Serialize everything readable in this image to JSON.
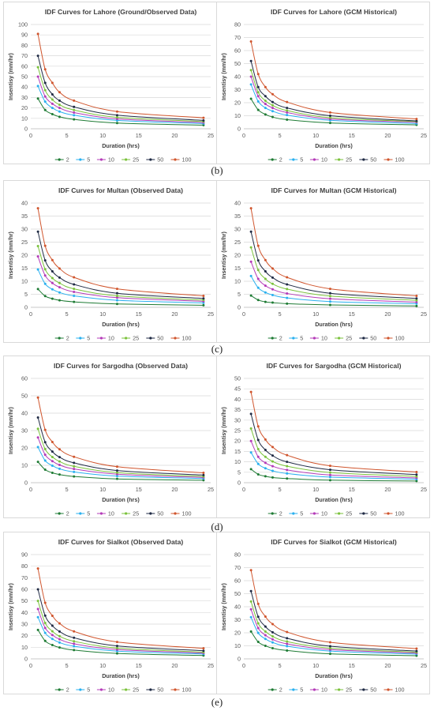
{
  "durations": [
    1,
    2,
    3,
    4,
    6,
    12,
    24
  ],
  "return_periods": [
    "2",
    "5",
    "10",
    "25",
    "50",
    "100"
  ],
  "series_colors": [
    "#1e7b34",
    "#2ab0ef",
    "#b43bb8",
    "#7bc23c",
    "#1f2a44",
    "#d0552d"
  ],
  "captions": [
    "(b)",
    "(c)",
    "(d)",
    "(e)"
  ],
  "chart_data": [
    {
      "type": "line",
      "title": "IDF Curves for Lahore (Ground/Observed Data)",
      "xlabel": "Duration (hrs)",
      "ylabel": "Insentisy (mm/hr)",
      "xlim": [
        0,
        25
      ],
      "ylim": [
        0,
        100
      ],
      "xticks": [
        0,
        5,
        10,
        15,
        20,
        25
      ],
      "yticks": [
        0,
        10,
        20,
        30,
        40,
        50,
        60,
        70,
        80,
        90,
        100
      ],
      "series": [
        {
          "name": "2",
          "values": [
            29,
            18,
            14,
            11.5,
            9,
            5.5,
            3.5
          ]
        },
        {
          "name": "5",
          "values": [
            41,
            26,
            20,
            16.5,
            13,
            8,
            5
          ]
        },
        {
          "name": "10",
          "values": [
            50,
            31,
            24,
            20,
            15.5,
            9.5,
            6
          ]
        },
        {
          "name": "25",
          "values": [
            59,
            37,
            28,
            23,
            18,
            11,
            7
          ]
        },
        {
          "name": "50",
          "values": [
            70,
            44,
            33,
            27,
            21,
            13,
            8
          ]
        },
        {
          "name": "100",
          "values": [
            91,
            57,
            44,
            35,
            27,
            16.5,
            10.5
          ]
        }
      ]
    },
    {
      "type": "line",
      "title": "IDF Curves for Lahore (GCM Historical)",
      "xlabel": "Duration (hrs)",
      "ylabel": "Insentisy (mm/hr)",
      "xlim": [
        0,
        25
      ],
      "ylim": [
        0,
        80
      ],
      "xticks": [
        0,
        5,
        10,
        15,
        20,
        25
      ],
      "yticks": [
        0,
        10,
        20,
        30,
        40,
        50,
        60,
        70,
        80
      ],
      "series": [
        {
          "name": "2",
          "values": [
            23,
            14.5,
            11,
            9,
            7,
            4.5,
            3
          ]
        },
        {
          "name": "5",
          "values": [
            34,
            21,
            16,
            13.5,
            10.5,
            6.5,
            4
          ]
        },
        {
          "name": "10",
          "values": [
            40,
            25,
            19,
            16,
            12.5,
            7.5,
            5
          ]
        },
        {
          "name": "25",
          "values": [
            45,
            28,
            21.5,
            18,
            14,
            8.5,
            5.5
          ]
        },
        {
          "name": "50",
          "values": [
            52,
            32,
            25,
            20.5,
            16,
            10,
            6
          ]
        },
        {
          "name": "100",
          "values": [
            67,
            42,
            32,
            26.5,
            20.5,
            12.5,
            7.5
          ]
        }
      ]
    },
    {
      "type": "line",
      "title": "IDF Curves for Multan (Observed Data)",
      "xlabel": "Duration (hrs)",
      "ylabel": "Insentisy (mm/hr)",
      "xlim": [
        0,
        25
      ],
      "ylim": [
        0,
        40
      ],
      "xticks": [
        0,
        5,
        10,
        15,
        20,
        25
      ],
      "yticks": [
        0,
        5,
        10,
        15,
        20,
        25,
        30,
        35,
        40
      ],
      "series": [
        {
          "name": "2",
          "values": [
            7,
            4.3,
            3.3,
            2.7,
            2.1,
            1.3,
            0.8
          ]
        },
        {
          "name": "5",
          "values": [
            14.5,
            9,
            6.9,
            5.7,
            4.4,
            2.7,
            1.7
          ]
        },
        {
          "name": "10",
          "values": [
            19.5,
            12.2,
            9.3,
            7.7,
            5.9,
            3.7,
            2.3
          ]
        },
        {
          "name": "25",
          "values": [
            23.5,
            14.6,
            11.2,
            9.3,
            7.1,
            4.4,
            2.8
          ]
        },
        {
          "name": "50",
          "values": [
            29,
            18,
            13.8,
            11.4,
            8.8,
            5.4,
            3.4
          ]
        },
        {
          "name": "100",
          "values": [
            38,
            23.6,
            18.1,
            14.9,
            11.5,
            7.1,
            4.4
          ]
        }
      ]
    },
    {
      "type": "line",
      "title": "IDF Curves for Multan (GCM Historical)",
      "xlabel": "Duration (hrs)",
      "ylabel": "Insentisy (mm/hr)",
      "xlim": [
        0,
        25
      ],
      "ylim": [
        0,
        40
      ],
      "xticks": [
        0,
        5,
        10,
        15,
        20,
        25
      ],
      "yticks": [
        0,
        5,
        10,
        15,
        20,
        25,
        30,
        35,
        40
      ],
      "series": [
        {
          "name": "2",
          "values": [
            4.5,
            2.8,
            2.1,
            1.8,
            1.4,
            0.9,
            0.5
          ]
        },
        {
          "name": "5",
          "values": [
            12,
            7.5,
            5.7,
            4.7,
            3.6,
            2.2,
            1.4
          ]
        },
        {
          "name": "10",
          "values": [
            17.5,
            10.9,
            8.3,
            6.9,
            5.3,
            3.3,
            2
          ]
        },
        {
          "name": "25",
          "values": [
            23,
            14.3,
            10.9,
            9,
            7,
            4.3,
            2.7
          ]
        },
        {
          "name": "50",
          "values": [
            29,
            18,
            13.8,
            11.4,
            8.8,
            5.4,
            3.4
          ]
        },
        {
          "name": "100",
          "values": [
            38,
            23.6,
            18.1,
            14.9,
            11.5,
            7.1,
            4.4
          ]
        }
      ]
    },
    {
      "type": "line",
      "title": "IDF Curves for Sargodha (Observed Data)",
      "xlabel": "Duration (hrs)",
      "ylabel": "Insentisy (mm/hr)",
      "xlim": [
        0,
        25
      ],
      "ylim": [
        0,
        60
      ],
      "xticks": [
        0,
        5,
        10,
        15,
        20,
        25
      ],
      "yticks": [
        0,
        10,
        20,
        30,
        40,
        50,
        60
      ],
      "series": [
        {
          "name": "2",
          "values": [
            12,
            7.5,
            5.7,
            4.7,
            3.6,
            2.2,
            1.4
          ]
        },
        {
          "name": "5",
          "values": [
            20.5,
            12.7,
            9.8,
            8,
            6.2,
            3.8,
            2.4
          ]
        },
        {
          "name": "10",
          "values": [
            26,
            16.1,
            12.4,
            10.2,
            7.9,
            4.9,
            3
          ]
        },
        {
          "name": "25",
          "values": [
            31,
            19.3,
            14.8,
            12.2,
            9.4,
            5.8,
            3.6
          ]
        },
        {
          "name": "50",
          "values": [
            37.5,
            23.3,
            17.9,
            14.7,
            11.4,
            7,
            4.4
          ]
        },
        {
          "name": "100",
          "values": [
            49,
            30.4,
            23.4,
            19.2,
            14.9,
            9.2,
            5.7
          ]
        }
      ]
    },
    {
      "type": "line",
      "title": "IDF Curves for Sargodha (GCM Historical)",
      "xlabel": "Duration (hrs)",
      "ylabel": "Insentisy (mm/hr)",
      "xlim": [
        0,
        25
      ],
      "ylim": [
        0,
        50
      ],
      "xticks": [
        0,
        5,
        10,
        15,
        20,
        25
      ],
      "yticks": [
        0,
        5,
        10,
        15,
        20,
        25,
        30,
        35,
        40,
        45,
        50
      ],
      "series": [
        {
          "name": "2",
          "values": [
            6.5,
            4,
            3.1,
            2.5,
            2,
            1.2,
            0.8
          ]
        },
        {
          "name": "5",
          "values": [
            14.5,
            9,
            6.9,
            5.7,
            4.4,
            2.7,
            1.7
          ]
        },
        {
          "name": "10",
          "values": [
            20,
            12.4,
            9.5,
            7.9,
            6.1,
            3.7,
            2.3
          ]
        },
        {
          "name": "25",
          "values": [
            26,
            16.1,
            12.4,
            10.2,
            7.9,
            4.9,
            3
          ]
        },
        {
          "name": "50",
          "values": [
            33,
            20.5,
            15.7,
            13,
            10,
            6.2,
            3.9
          ]
        },
        {
          "name": "100",
          "values": [
            43.5,
            27,
            20.7,
            17.1,
            13.2,
            8.1,
            5.1
          ]
        }
      ]
    },
    {
      "type": "line",
      "title": "IDF Curves for Sialkot (Observed Data)",
      "xlabel": "Duration (hrs)",
      "ylabel": "Insentisy (mm/hr)",
      "xlim": [
        0,
        25
      ],
      "ylim": [
        0,
        90
      ],
      "xticks": [
        0,
        5,
        10,
        15,
        20,
        25
      ],
      "yticks": [
        0,
        10,
        20,
        30,
        40,
        50,
        60,
        70,
        80,
        90
      ],
      "series": [
        {
          "name": "2",
          "values": [
            25,
            15.5,
            11.9,
            9.8,
            7.6,
            4.7,
            2.9
          ]
        },
        {
          "name": "5",
          "values": [
            36,
            22.4,
            17.2,
            14.1,
            10.9,
            6.7,
            4.2
          ]
        },
        {
          "name": "10",
          "values": [
            43,
            26.7,
            20.5,
            16.9,
            13,
            8,
            5
          ]
        },
        {
          "name": "25",
          "values": [
            50,
            31,
            23.8,
            19.6,
            15.2,
            9.3,
            5.8
          ]
        },
        {
          "name": "50",
          "values": [
            60,
            37.3,
            28.6,
            23.6,
            18.2,
            11.2,
            7
          ]
        },
        {
          "name": "100",
          "values": [
            78,
            48.4,
            37.2,
            30.6,
            23.7,
            14.6,
            9.1
          ]
        }
      ]
    },
    {
      "type": "line",
      "title": "IDF Curves for Sialkot (GCM Historical)",
      "xlabel": "Duration (hrs)",
      "ylabel": "Insentisy (mm/hr)",
      "xlim": [
        0,
        25
      ],
      "ylim": [
        0,
        80
      ],
      "xticks": [
        0,
        5,
        10,
        15,
        20,
        25
      ],
      "yticks": [
        0,
        10,
        20,
        30,
        40,
        50,
        60,
        70,
        80
      ],
      "series": [
        {
          "name": "2",
          "values": [
            21,
            13,
            10,
            8.2,
            6.4,
            3.9,
            2.4
          ]
        },
        {
          "name": "5",
          "values": [
            32,
            19.9,
            15.3,
            12.6,
            9.7,
            6,
            3.7
          ]
        },
        {
          "name": "10",
          "values": [
            38,
            23.6,
            18.1,
            14.9,
            11.5,
            7.1,
            4.4
          ]
        },
        {
          "name": "25",
          "values": [
            44,
            27.3,
            21,
            17.3,
            13.3,
            8.2,
            5.1
          ]
        },
        {
          "name": "50",
          "values": [
            52,
            32.3,
            24.8,
            20.4,
            15.8,
            9.7,
            6
          ]
        },
        {
          "name": "100",
          "values": [
            68,
            42.2,
            32.4,
            26.7,
            20.6,
            12.7,
            7.9
          ]
        }
      ]
    }
  ]
}
